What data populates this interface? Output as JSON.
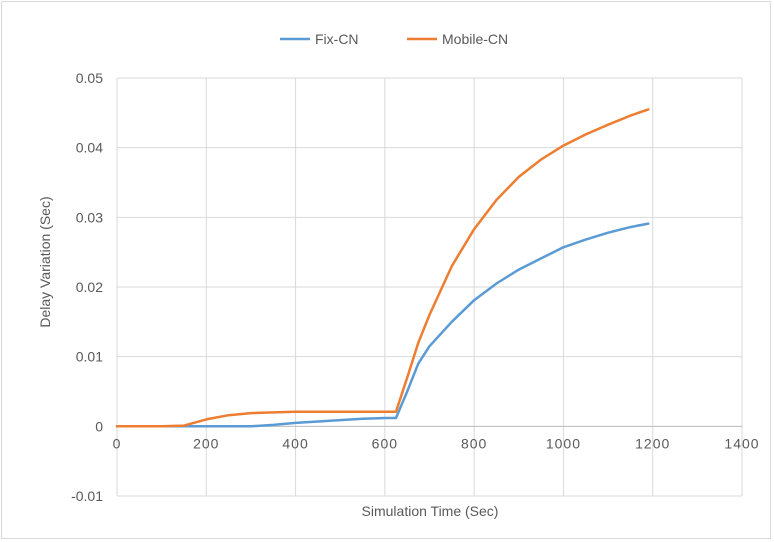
{
  "chart_data": {
    "type": "line",
    "title": "",
    "xlabel": "Simulation Time (Sec)",
    "ylabel": "Delay Variation (Sec)",
    "xlim": [
      0,
      1400
    ],
    "ylim": [
      -0.01,
      0.05
    ],
    "x_ticks": [
      0,
      200,
      400,
      600,
      800,
      1000,
      1200,
      1400
    ],
    "x_tick_labels": [
      "0",
      "200",
      "400",
      "600",
      "800",
      "1000",
      "1200",
      "1400"
    ],
    "y_ticks": [
      -0.01,
      0,
      0.01,
      0.02,
      0.03,
      0.04,
      0.05
    ],
    "y_tick_labels": [
      "-0.01",
      "0",
      "0.01",
      "0.02",
      "0.03",
      "0.04",
      "0.05"
    ],
    "grid": "vertical and horizontal",
    "legend_position": "top-center",
    "series": [
      {
        "name": "Fix-CN",
        "color": "#5b9bd5",
        "x": [
          0,
          100,
          200,
          300,
          350,
          400,
          450,
          500,
          550,
          600,
          625,
          650,
          675,
          700,
          750,
          800,
          850,
          900,
          950,
          1000,
          1050,
          1100,
          1150,
          1190
        ],
        "y": [
          0,
          0,
          0,
          0,
          0.0002,
          0.0005,
          0.0007,
          0.0009,
          0.0011,
          0.0012,
          0.0012,
          0.005,
          0.009,
          0.0115,
          0.015,
          0.0181,
          0.0205,
          0.0225,
          0.0241,
          0.0257,
          0.0268,
          0.0278,
          0.0286,
          0.0291
        ]
      },
      {
        "name": "Mobile-CN",
        "color": "#ed7d31",
        "x": [
          0,
          100,
          150,
          200,
          250,
          300,
          350,
          400,
          500,
          600,
          625,
          650,
          675,
          700,
          750,
          800,
          850,
          900,
          950,
          1000,
          1050,
          1100,
          1150,
          1190
        ],
        "y": [
          0,
          0,
          0.0001,
          0.001,
          0.0016,
          0.0019,
          0.002,
          0.0021,
          0.0021,
          0.0021,
          0.0021,
          0.007,
          0.012,
          0.016,
          0.023,
          0.0283,
          0.0325,
          0.0358,
          0.0383,
          0.0403,
          0.0419,
          0.0433,
          0.0446,
          0.0455
        ]
      }
    ]
  }
}
